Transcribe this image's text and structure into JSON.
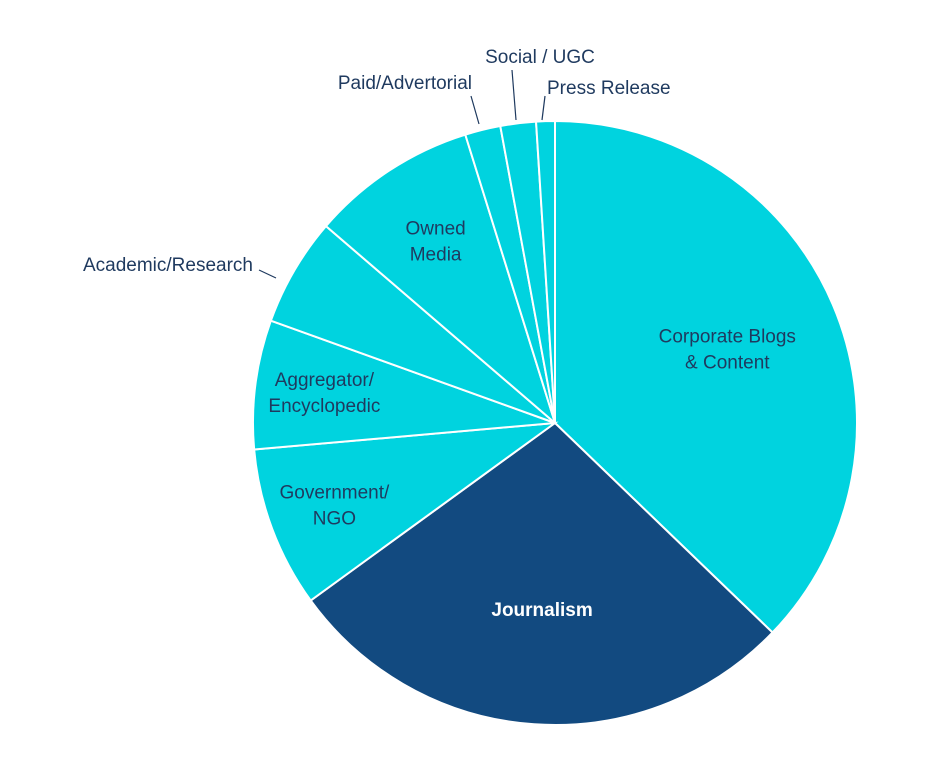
{
  "chart_data": {
    "type": "pie",
    "colors": {
      "default": "#00d3df",
      "Journalism": "#124a80",
      "divider": "#ffffff",
      "label": "#1f3a5f"
    },
    "slices": [
      {
        "label": "Corporate Blogs & Content",
        "lines": [
          "Corporate Blogs",
          "& Content"
        ],
        "value": 37.2
      },
      {
        "label": "Journalism",
        "lines": [
          "Journalism"
        ],
        "value": 27.8
      },
      {
        "label": "Government/ NGO",
        "lines": [
          "Government/",
          "NGO"
        ],
        "value": 8.6
      },
      {
        "label": "Aggregator/ Encyclopedic",
        "lines": [
          "Aggregator/",
          "Encyclopedic"
        ],
        "value": 6.9
      },
      {
        "label": "Academic/Research",
        "lines": [
          "Academic/Research"
        ],
        "value": 5.8
      },
      {
        "label": "Owned Media",
        "lines": [
          "Owned",
          "Media"
        ],
        "value": 8.9
      },
      {
        "label": "Paid/Advertorial",
        "lines": [
          "Paid/Advertorial"
        ],
        "value": 1.9
      },
      {
        "label": "Social / UGC",
        "lines": [
          "Social / UGC"
        ],
        "value": 1.9
      },
      {
        "label": "Press Release",
        "lines": [
          "Press Release"
        ],
        "value": 1.0
      }
    ]
  }
}
